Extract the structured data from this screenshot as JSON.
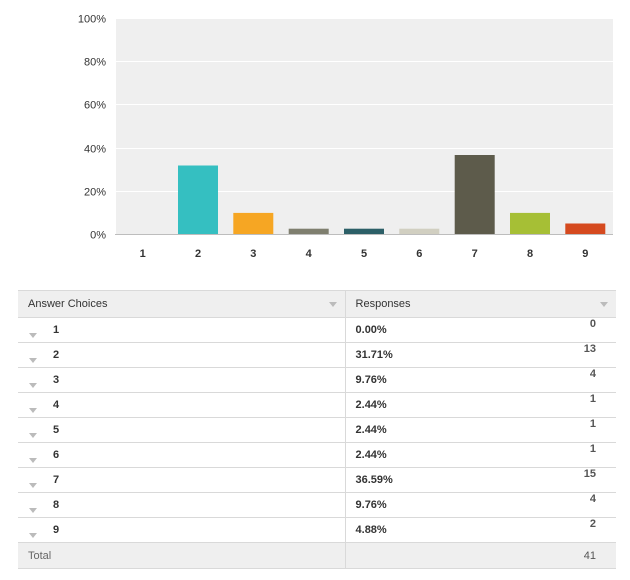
{
  "chart_data": {
    "type": "bar",
    "categories": [
      "1",
      "2",
      "3",
      "4",
      "5",
      "6",
      "7",
      "8",
      "9"
    ],
    "values": [
      0,
      31.71,
      9.76,
      2.44,
      2.44,
      2.44,
      36.59,
      9.76,
      4.88
    ],
    "colors": [
      "#8a8a8a",
      "#35bfc1",
      "#f6a623",
      "#7f7f6f",
      "#2c5f67",
      "#d1cfc1",
      "#5d5b4b",
      "#a6bf35",
      "#d54a1f"
    ],
    "ylim": [
      0,
      100
    ],
    "yticks": [
      0,
      20,
      40,
      60,
      80,
      100
    ],
    "ytick_labels": [
      "0%",
      "20%",
      "40%",
      "60%",
      "80%",
      "100%"
    ],
    "grid": true
  },
  "table": {
    "header": {
      "choices": "Answer Choices",
      "responses": "Responses"
    },
    "rows": [
      {
        "choice": "1",
        "percent": "0.00%",
        "count": "0"
      },
      {
        "choice": "2",
        "percent": "31.71%",
        "count": "13"
      },
      {
        "choice": "3",
        "percent": "9.76%",
        "count": "4"
      },
      {
        "choice": "4",
        "percent": "2.44%",
        "count": "1"
      },
      {
        "choice": "5",
        "percent": "2.44%",
        "count": "1"
      },
      {
        "choice": "6",
        "percent": "2.44%",
        "count": "1"
      },
      {
        "choice": "7",
        "percent": "36.59%",
        "count": "15"
      },
      {
        "choice": "8",
        "percent": "9.76%",
        "count": "4"
      },
      {
        "choice": "9",
        "percent": "4.88%",
        "count": "2"
      }
    ],
    "total": {
      "label": "Total",
      "count": "41"
    }
  }
}
